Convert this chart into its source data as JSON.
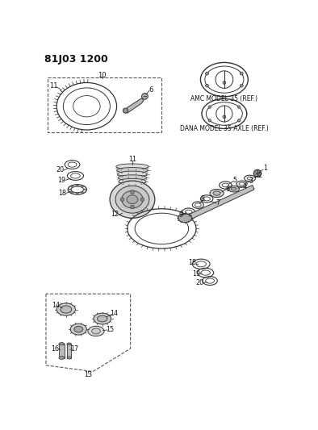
{
  "title": "81J03 1200",
  "bg_color": "#ffffff",
  "line_color": "#333333",
  "amc_label": "AMC MODEL 35 (REF.)",
  "dana_label": "DANA MODEL 35 AXLE (REF.)",
  "gray_light": "#cccccc",
  "gray_mid": "#aaaaaa",
  "gray_dark": "#666666"
}
